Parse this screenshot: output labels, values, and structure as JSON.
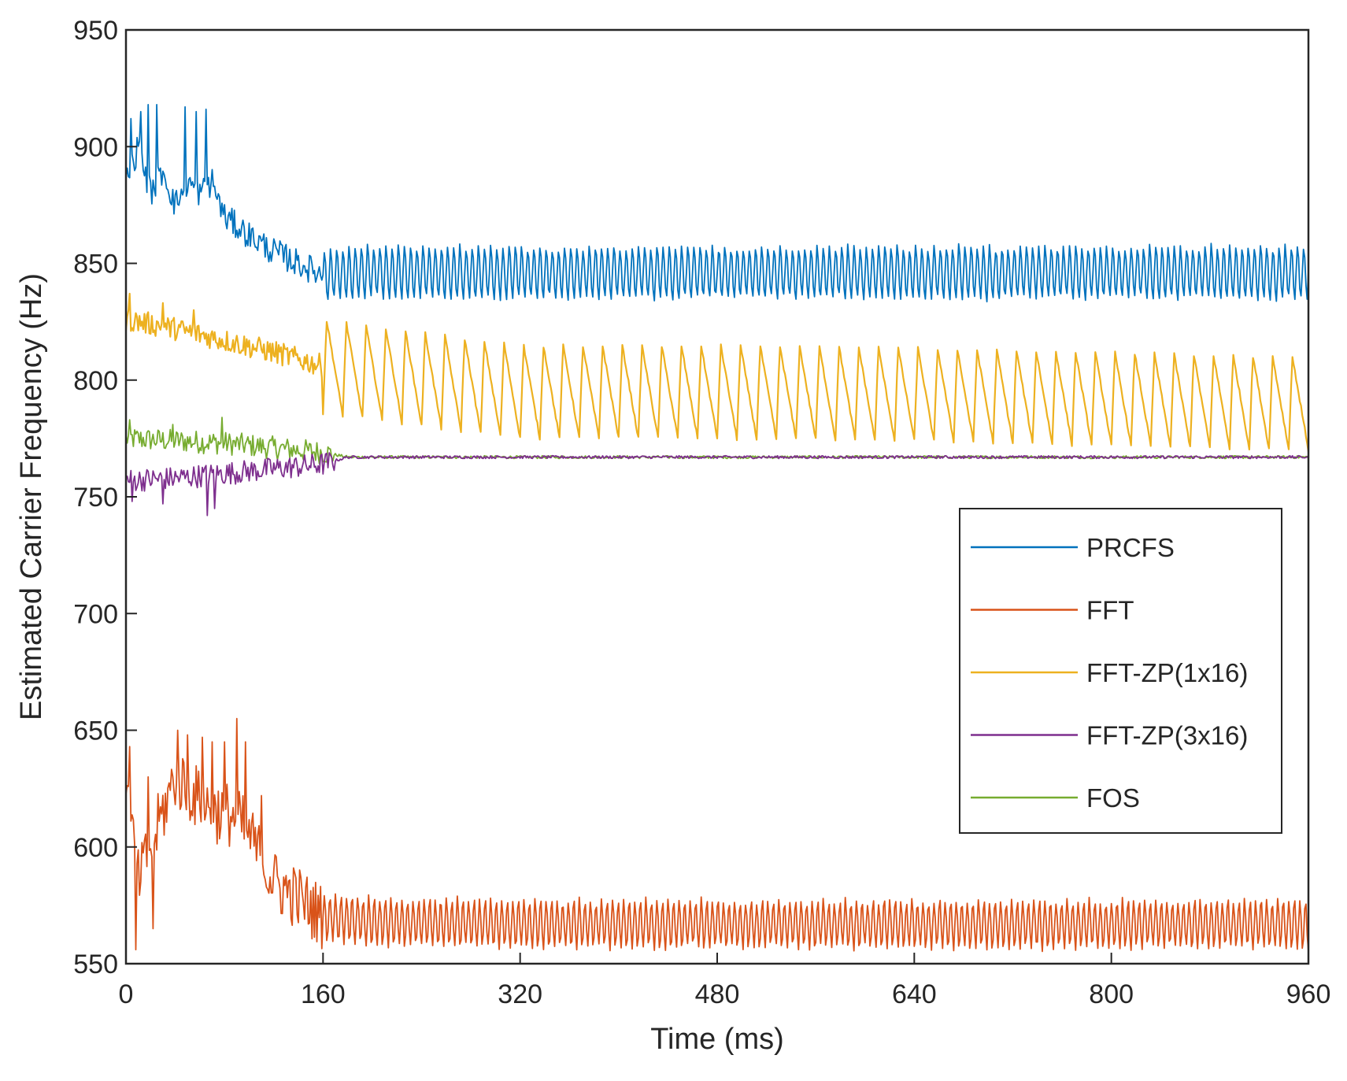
{
  "chart_data": {
    "type": "line",
    "title": "",
    "xlabel": "Time (ms)",
    "ylabel": "Estimated Carrier  Frequency (Hz)",
    "xlim": [
      0,
      960
    ],
    "ylim": [
      550,
      950
    ],
    "xticks": [
      0,
      160,
      320,
      480,
      640,
      800,
      960
    ],
    "yticks": [
      550,
      600,
      650,
      700,
      750,
      800,
      850,
      900,
      950
    ],
    "grid": false,
    "legend_position": "center-right",
    "series": [
      {
        "name": "PRCFS",
        "color": "#0072BD",
        "description": "noisy around 875-900 Hz with spikes to ~918 Hz during 0-70 ms, decays to ~845 Hz by 160 ms, then oscillates 833-858 Hz",
        "x": [
          0,
          10,
          20,
          30,
          40,
          50,
          60,
          70,
          80,
          100,
          120,
          140,
          160,
          200,
          320,
          480,
          640,
          800,
          960
        ],
        "y": [
          885,
          900,
          880,
          890,
          875,
          885,
          880,
          885,
          870,
          862,
          855,
          850,
          845,
          846,
          846,
          846,
          846,
          846,
          846
        ],
        "oscillation": {
          "start": 160,
          "period": 5,
          "amplitude": 12.5
        },
        "spikes": [
          [
            4,
            912
          ],
          [
            12,
            915
          ],
          [
            18,
            918
          ],
          [
            25,
            918
          ],
          [
            48,
            917
          ],
          [
            57,
            915
          ],
          [
            65,
            916
          ]
        ]
      },
      {
        "name": "FFT",
        "color": "#D95319",
        "description": "noisy 555-655 Hz during 0-110 ms, decays to ~570 Hz by 160 ms, then oscillates 555-580 Hz",
        "x": [
          0,
          10,
          20,
          30,
          40,
          50,
          60,
          70,
          80,
          90,
          100,
          110,
          120,
          140,
          160,
          200,
          320,
          480,
          640,
          800,
          960
        ],
        "y": [
          625,
          585,
          600,
          615,
          630,
          625,
          620,
          615,
          615,
          612,
          605,
          595,
          585,
          578,
          570,
          568,
          567,
          567,
          567,
          567,
          567
        ],
        "oscillation": {
          "start": 160,
          "period": 4.5,
          "amplitude": 11.5
        },
        "spikes": [
          [
            3,
            643
          ],
          [
            8,
            556
          ],
          [
            18,
            630
          ],
          [
            22,
            565
          ],
          [
            42,
            650
          ],
          [
            50,
            648
          ],
          [
            62,
            647
          ],
          [
            70,
            645
          ],
          [
            80,
            645
          ],
          [
            90,
            655
          ],
          [
            97,
            645
          ],
          [
            110,
            622
          ]
        ]
      },
      {
        "name": "FFT-ZP(1x16)",
        "color": "#EDB120",
        "description": "starts ~825 Hz declining to ~808 Hz at 160 ms, then sawtooth oscillation between ~775 and ~815 Hz",
        "x": [
          0,
          40,
          80,
          120,
          160,
          320,
          480,
          640,
          800,
          960
        ],
        "y": [
          826,
          822,
          817,
          812,
          806,
          795,
          795,
          794,
          792,
          790
        ],
        "oscillation": {
          "start": 160,
          "period": 16,
          "amplitude": 20
        },
        "spikes": [
          [
            3,
            837
          ],
          [
            30,
            833
          ],
          [
            55,
            830
          ]
        ]
      },
      {
        "name": "FFT-ZP(3x16)",
        "color": "#7E2F8E",
        "description": "noisy 745-770 Hz during 0-160 ms, converges to ~767 Hz by 180 ms",
        "x": [
          0,
          40,
          80,
          120,
          160,
          180,
          320,
          480,
          640,
          800,
          960
        ],
        "y": [
          757,
          758,
          760,
          762,
          764,
          767,
          767,
          767,
          767,
          767,
          767
        ],
        "spikes": [
          [
            5,
            748
          ],
          [
            30,
            747
          ],
          [
            66,
            742
          ],
          [
            72,
            745
          ]
        ]
      },
      {
        "name": "FOS",
        "color": "#77AC30",
        "description": "noisy 765-785 Hz during 0-160 ms, converges to ~767 Hz and stays flat",
        "x": [
          0,
          40,
          80,
          120,
          160,
          180,
          320,
          480,
          640,
          800,
          960
        ],
        "y": [
          775,
          774,
          773,
          771,
          769,
          767,
          767,
          767,
          767,
          767,
          767
        ],
        "spikes": [
          [
            3,
            783
          ],
          [
            38,
            781
          ],
          [
            78,
            784
          ]
        ]
      }
    ]
  }
}
